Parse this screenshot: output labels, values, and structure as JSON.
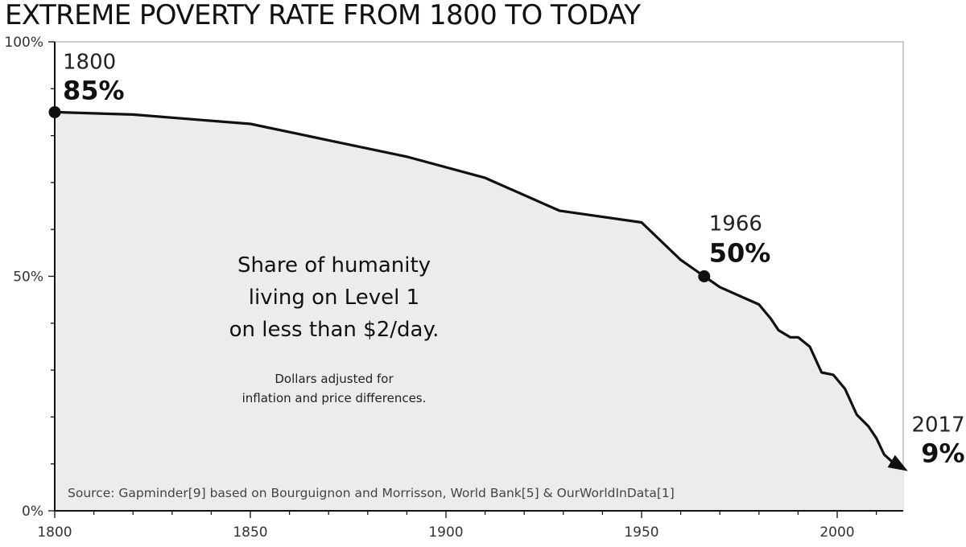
{
  "chart_data": {
    "type": "area",
    "title": "EXTREME POVERTY RATE FROM 1800 TO TODAY",
    "xlabel": "",
    "ylabel": "",
    "xlim": [
      1800,
      2017
    ],
    "ylim": [
      0,
      100
    ],
    "x_ticks": [
      1800,
      1850,
      1900,
      1950,
      2000
    ],
    "y_ticks": [
      {
        "value": 0,
        "label": "0%"
      },
      {
        "value": 50,
        "label": "50%"
      },
      {
        "value": 100,
        "label": "100%"
      }
    ],
    "grid": false,
    "series": [
      {
        "x": [
          1800,
          1820,
          1850,
          1870,
          1890,
          1910,
          1929,
          1950,
          1960,
          1966,
          1970,
          1980,
          1983,
          1985,
          1988,
          1990,
          1993,
          1996,
          1999,
          2002,
          2005,
          2008,
          2010,
          2012,
          2014,
          2017
        ],
        "values": [
          85,
          84.5,
          82.5,
          79,
          75.5,
          71,
          64,
          61.5,
          53.5,
          50,
          47.7,
          44,
          41,
          38.5,
          37,
          37,
          35,
          29.5,
          29,
          26,
          20.5,
          18,
          15.5,
          12,
          10.5,
          9
        ]
      }
    ],
    "annotations": [
      {
        "year": "1800",
        "value": "85%",
        "x": 1800,
        "y": 85
      },
      {
        "year": "1966",
        "value": "50%",
        "x": 1966,
        "y": 50
      },
      {
        "year": "2017",
        "value": "9%",
        "x": 2017,
        "y": 9
      }
    ],
    "center_text": [
      "Share of humanity",
      "living on Level 1",
      "on less than $2/day."
    ],
    "note_text": [
      "Dollars adjusted for",
      "inflation and price differences."
    ],
    "source": "Source: Gapminder[9] based on Bourguignon and Morrisson, World Bank[5] & OurWorldInData[1]"
  }
}
